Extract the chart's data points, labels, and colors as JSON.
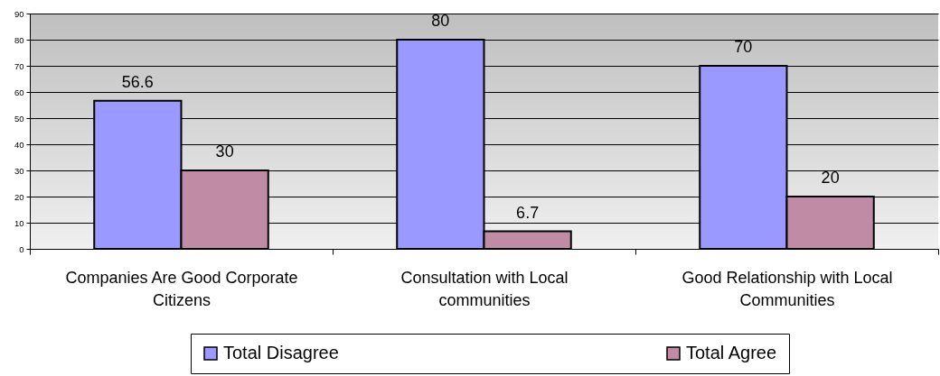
{
  "chart_data": {
    "type": "bar",
    "categories": [
      "Companies Are Good Corporate Citizens",
      "Consultation with Local communities",
      "Good Relationship with Local Communities"
    ],
    "series": [
      {
        "name": "Total Disagree",
        "color": "#9999ff",
        "values": [
          56.6,
          80,
          70
        ]
      },
      {
        "name": "Total Agree",
        "color": "#c08ba5",
        "values": [
          30,
          6.7,
          20
        ]
      }
    ],
    "ylim": [
      0,
      90
    ],
    "yticks": [
      0,
      10,
      20,
      30,
      40,
      50,
      60,
      70,
      80,
      90
    ],
    "grid": "y",
    "legend": "bottom",
    "data_labels": true
  }
}
